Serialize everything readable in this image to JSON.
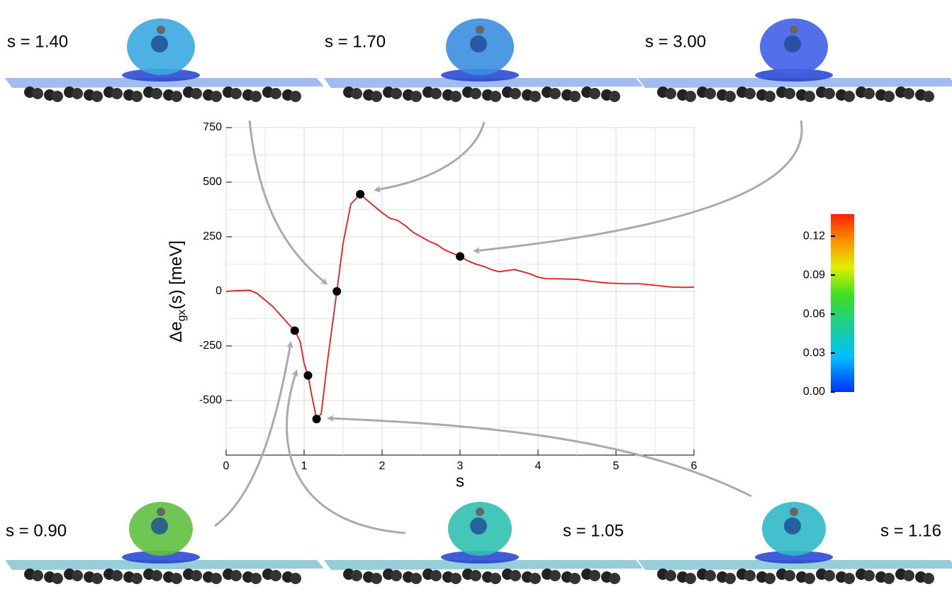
{
  "chart_data": {
    "type": "line",
    "xlabel": "s",
    "ylabel": [
      "Δe",
      "gx",
      "(s)  [meV]"
    ],
    "xlim": [
      0,
      6
    ],
    "xticks": [
      0,
      1,
      2,
      3,
      4,
      5,
      6
    ],
    "ylim": [
      -750,
      750
    ],
    "yticks": [
      -500,
      -250,
      0,
      250,
      500,
      750
    ],
    "grid": true,
    "x": [
      0,
      0.15,
      0.3,
      0.4,
      0.5,
      0.6,
      0.7,
      0.8,
      0.88,
      0.95,
      1.0,
      1.05,
      1.1,
      1.16,
      1.22,
      1.3,
      1.42,
      1.5,
      1.6,
      1.72,
      1.8,
      1.9,
      2.0,
      2.1,
      2.2,
      2.3,
      2.4,
      2.5,
      2.6,
      2.7,
      2.8,
      2.9,
      3.0,
      3.1,
      3.2,
      3.3,
      3.4,
      3.5,
      3.6,
      3.7,
      3.8,
      3.9,
      4.0,
      4.1,
      4.3,
      4.5,
      4.7,
      4.9,
      5.1,
      5.3,
      5.5,
      5.7,
      5.9,
      6.0
    ],
    "series": [
      {
        "color": "#e8191b",
        "values": [
          0,
          3,
          5,
          -10,
          -40,
          -70,
          -110,
          -150,
          -180,
          -230,
          -330,
          -385,
          -480,
          -585,
          -560,
          -320,
          0,
          220,
          400,
          445,
          420,
          390,
          360,
          335,
          325,
          300,
          270,
          250,
          230,
          215,
          190,
          175,
          160,
          140,
          125,
          115,
          100,
          90,
          95,
          100,
          90,
          80,
          65,
          58,
          57,
          55,
          45,
          38,
          35,
          35,
          28,
          20,
          18,
          20
        ]
      }
    ],
    "points": {
      "color": "#000000",
      "x": [
        0.88,
        1.05,
        1.16,
        1.42,
        1.72,
        3.0
      ],
      "values": [
        -180,
        -385,
        -585,
        0,
        445,
        160
      ]
    },
    "panels": [
      {
        "label": "s = 1.40"
      },
      {
        "label": "s = 1.70"
      },
      {
        "label": "s = 3.00"
      },
      {
        "label": "s = 0.90"
      },
      {
        "label": "s = 1.05"
      },
      {
        "label": "s = 1.16"
      }
    ],
    "colorbar": {
      "lim": [
        0,
        0.137
      ],
      "ticks": [
        {
          "value": 0,
          "label": "0.00"
        },
        {
          "value": 0.03,
          "label": "0.03"
        },
        {
          "value": 0.06,
          "label": "0.06"
        },
        {
          "value": 0.09,
          "label": "0.09"
        },
        {
          "value": 0.12,
          "label": "0.12"
        }
      ]
    }
  }
}
